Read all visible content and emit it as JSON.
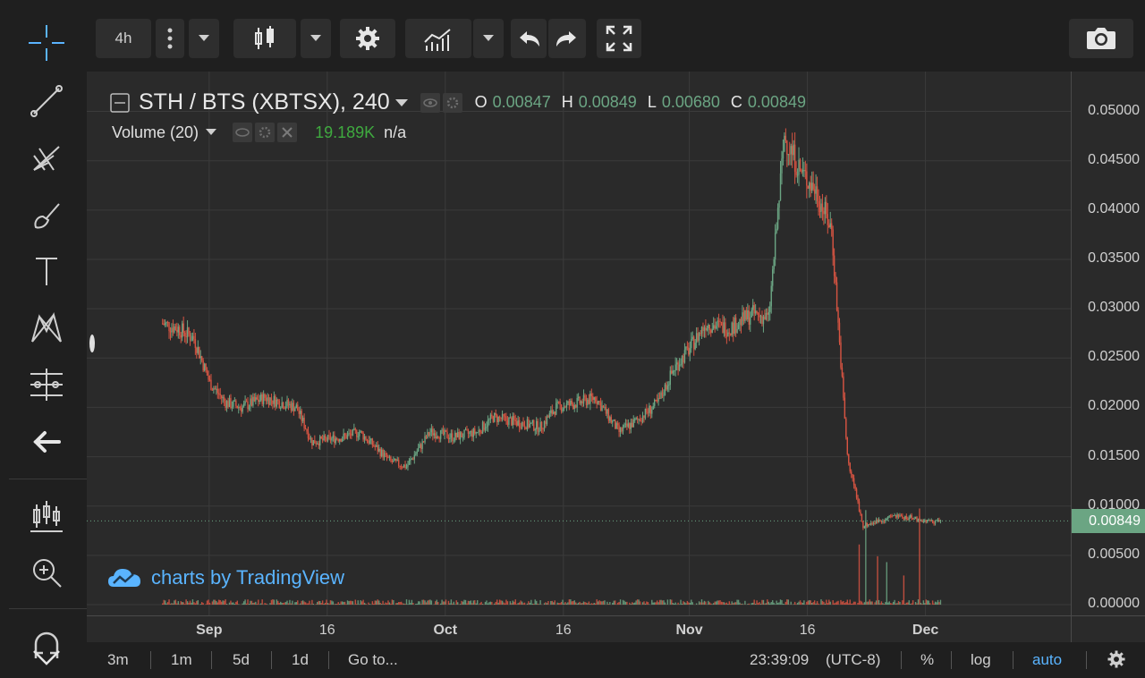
{
  "toolbar": {
    "interval": "4h",
    "buttons": [
      "crosshair-icon",
      "trendline-icon",
      "fib-icon",
      "brush-icon",
      "text-icon",
      "pattern-icon",
      "measure-icon",
      "back-arrow-icon",
      "candles-icon",
      "zoom-icon",
      "magnet-icon"
    ]
  },
  "legend": {
    "symbol": "STH / BTS (XBTSX), 240",
    "o_label": "O",
    "o_value": "0.00847",
    "h_label": "H",
    "h_value": "0.00849",
    "l_label": "L",
    "l_value": "0.00680",
    "c_label": "C",
    "c_value": "0.00849",
    "volume_label": "Volume (20)",
    "volume_value": "19.189K",
    "volume_extra": "n/a"
  },
  "watermark": "charts by TradingView",
  "price_axis": {
    "ticks": [
      "0.05000",
      "0.04500",
      "0.04000",
      "0.03500",
      "0.03000",
      "0.02500",
      "0.02000",
      "0.01500",
      "0.01000",
      "0.00500",
      "0.00000"
    ],
    "current": "0.00849"
  },
  "time_axis": {
    "ticks": [
      "Sep",
      "16",
      "Oct",
      "16",
      "Nov",
      "16",
      "Dec"
    ]
  },
  "bottom_bar": {
    "ranges": [
      "3m",
      "1m",
      "5d",
      "1d"
    ],
    "goto": "Go to...",
    "clock": "23:39:09",
    "timezone": "(UTC-8)",
    "percent": "%",
    "log": "log",
    "auto": "auto"
  },
  "colors": {
    "up": "#6ba583",
    "down": "#d75442",
    "accent": "#5ab4ff",
    "last_price_bg": "#6ba583"
  },
  "chart_data": {
    "type": "bar",
    "title": "STH / BTS (XBTSX), 240",
    "ylim": [
      0,
      0.0515
    ],
    "x_ticks": [
      "Sep",
      "16",
      "Oct",
      "16",
      "Nov",
      "16",
      "Dec"
    ],
    "anchors": [
      [
        "Aug 26",
        0.0285
      ],
      [
        "Aug 28",
        0.028
      ],
      [
        "Aug 30",
        0.027
      ],
      [
        "Sep 1",
        0.0225
      ],
      [
        "Sep 3",
        0.0205
      ],
      [
        "Sep 5",
        0.02
      ],
      [
        "Sep 8",
        0.021
      ],
      [
        "Sep 12",
        0.02
      ],
      [
        "Sep 14",
        0.0165
      ],
      [
        "Sep 18",
        0.017
      ],
      [
        "Sep 20",
        0.0175
      ],
      [
        "Sep 22",
        0.016
      ],
      [
        "Sep 24",
        0.0145
      ],
      [
        "Sep 26",
        0.014
      ],
      [
        "Sep 29",
        0.0175
      ],
      [
        "Oct 2",
        0.017
      ],
      [
        "Oct 5",
        0.0175
      ],
      [
        "Oct 7",
        0.019
      ],
      [
        "Oct 10",
        0.0185
      ],
      [
        "Oct 13",
        0.018
      ],
      [
        "Oct 15",
        0.02
      ],
      [
        "Oct 18",
        0.0205
      ],
      [
        "Oct 20",
        0.021
      ],
      [
        "Oct 23",
        0.0175
      ],
      [
        "Oct 25",
        0.0185
      ],
      [
        "Oct 28",
        0.0205
      ],
      [
        "Oct 30",
        0.024
      ],
      [
        "Nov 1",
        0.026
      ],
      [
        "Nov 3",
        0.0285
      ],
      [
        "Nov 6",
        0.028
      ],
      [
        "Nov 9",
        0.0295
      ],
      [
        "Nov 11",
        0.029
      ],
      [
        "Nov 13",
        0.0475
      ],
      [
        "Nov 15",
        0.044
      ],
      [
        "Nov 17",
        0.042
      ],
      [
        "Nov 19",
        0.038
      ],
      [
        "Nov 21",
        0.015
      ],
      [
        "Nov 23",
        0.008
      ],
      [
        "Nov 25",
        0.0085
      ],
      [
        "Nov 27",
        0.009
      ],
      [
        "Nov 29",
        0.0088
      ],
      [
        "Dec 1",
        0.0085
      ],
      [
        "Dec 3",
        0.00849
      ]
    ],
    "last_close": 0.00849
  }
}
